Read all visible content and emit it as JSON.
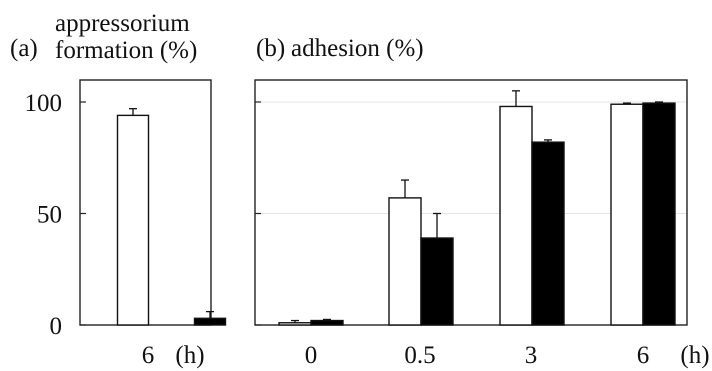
{
  "chart_data": [
    {
      "type": "bar",
      "panel_label": "(a)",
      "title_lines": [
        "appressorium",
        "formation (%)"
      ],
      "categories": [
        "6"
      ],
      "x_unit": "(h)",
      "y_ticks": [
        "100",
        "50",
        "0"
      ],
      "ylim": [
        0,
        110
      ],
      "grid": false,
      "series": [
        {
          "fill": "#ffffff",
          "values": [
            94
          ],
          "errors": [
            3
          ]
        },
        {
          "fill": "#000000",
          "values": [
            3
          ],
          "errors": [
            3
          ]
        }
      ]
    },
    {
      "type": "bar",
      "panel_label": "(b)",
      "title_lines": [
        "adhesion (%)"
      ],
      "categories": [
        "0",
        "0.5",
        "3",
        "6"
      ],
      "x_unit": "(h)",
      "y_ticks": [],
      "ylim": [
        0,
        110
      ],
      "grid": true,
      "series": [
        {
          "fill": "#ffffff",
          "values": [
            1,
            57,
            98,
            99
          ],
          "errors": [
            1,
            8,
            7,
            0.5
          ]
        },
        {
          "fill": "#000000",
          "values": [
            2,
            39,
            82,
            99.5
          ],
          "errors": [
            0.5,
            11,
            1,
            0.5
          ]
        }
      ]
    }
  ]
}
